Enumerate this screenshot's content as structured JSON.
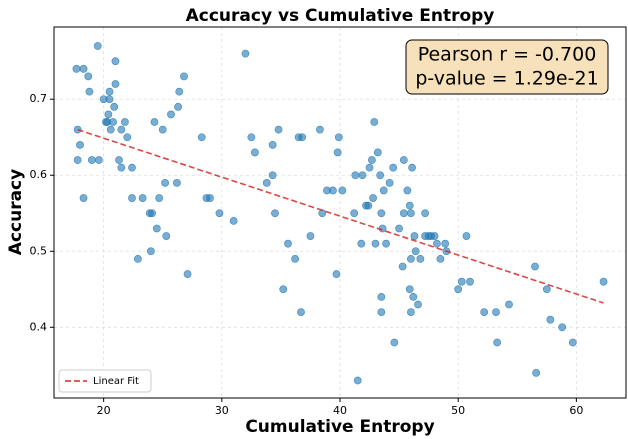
{
  "chart_data": {
    "type": "scatter",
    "title": "Accuracy vs Cumulative Entropy",
    "xlabel": "Cumulative Entropy",
    "ylabel": "Accuracy",
    "annotation": [
      "Pearson r = -0.700",
      "p-value = 1.29e-21"
    ],
    "xlim": [
      15.8,
      64.2
    ],
    "ylim": [
      0.307,
      0.795
    ],
    "xticks": [
      20,
      30,
      40,
      50,
      60
    ],
    "yticks": [
      0.4,
      0.5,
      0.6,
      0.7
    ],
    "grid": true,
    "legend": "lower left",
    "series": [
      {
        "name": "points",
        "color": "#1f77b4",
        "x": [
          17.7,
          18.3,
          19.5,
          18.7,
          18.8,
          17.8,
          18.0,
          17.8,
          18.3,
          19.0,
          19.6,
          20.0,
          20.2,
          20.3,
          20.5,
          20.5,
          20.4,
          20.6,
          20.9,
          21.0,
          21.0,
          20.8,
          21.3,
          21.5,
          21.5,
          21.8,
          22.0,
          22.4,
          22.4,
          22.9,
          23.3,
          23.9,
          24.0,
          24.1,
          24.3,
          24.7,
          24.5,
          25.0,
          25.2,
          25.3,
          25.7,
          26.3,
          26.2,
          26.4,
          26.8,
          27.1,
          28.3,
          28.7,
          29.0,
          29.8,
          31.0,
          32.0,
          32.5,
          32.8,
          33.8,
          34.3,
          34.5,
          34.8,
          34.3,
          35.2,
          35.6,
          36.2,
          36.5,
          36.8,
          36.7,
          37.5,
          38.3,
          38.5,
          38.9,
          39.4,
          39.7,
          39.8,
          39.9,
          40.2,
          41.2,
          41.3,
          41.5,
          41.8,
          41.9,
          42.2,
          42.4,
          42.5,
          42.7,
          42.8,
          42.9,
          43.0,
          43.2,
          43.4,
          43.5,
          43.6,
          43.7,
          43.5,
          43.5,
          43.9,
          44.2,
          44.5,
          44.6,
          45.0,
          45.3,
          45.4,
          45.4,
          45.7,
          45.9,
          46.0,
          46.1,
          45.9,
          46.0,
          46.2,
          46.3,
          46.4,
          46.6,
          46.8,
          47.2,
          47.2,
          47.5,
          47.7,
          48.0,
          48.2,
          48.5,
          48.9,
          49.0,
          50.0,
          50.3,
          50.7,
          51.0,
          52.2,
          53.2,
          53.3,
          54.3,
          56.5,
          56.6,
          57.5,
          57.8,
          58.8,
          59.7,
          62.3,
          46.0
        ],
        "values": [
          0.74,
          0.74,
          0.77,
          0.73,
          0.71,
          0.66,
          0.64,
          0.62,
          0.57,
          0.62,
          0.62,
          0.7,
          0.67,
          0.67,
          0.71,
          0.7,
          0.68,
          0.66,
          0.69,
          0.75,
          0.72,
          0.67,
          0.62,
          0.66,
          0.61,
          0.67,
          0.65,
          0.61,
          0.57,
          0.49,
          0.57,
          0.55,
          0.5,
          0.55,
          0.67,
          0.57,
          0.53,
          0.66,
          0.59,
          0.52,
          0.68,
          0.69,
          0.59,
          0.71,
          0.73,
          0.47,
          0.65,
          0.57,
          0.57,
          0.55,
          0.54,
          0.76,
          0.65,
          0.63,
          0.59,
          0.64,
          0.55,
          0.66,
          0.6,
          0.45,
          0.51,
          0.49,
          0.65,
          0.65,
          0.42,
          0.52,
          0.66,
          0.55,
          0.58,
          0.58,
          0.47,
          0.63,
          0.65,
          0.58,
          0.55,
          0.6,
          0.33,
          0.51,
          0.6,
          0.56,
          0.56,
          0.61,
          0.62,
          0.57,
          0.67,
          0.51,
          0.63,
          0.6,
          0.55,
          0.53,
          0.58,
          0.44,
          0.42,
          0.51,
          0.59,
          0.61,
          0.38,
          0.53,
          0.48,
          0.55,
          0.62,
          0.58,
          0.56,
          0.55,
          0.61,
          0.45,
          0.49,
          0.44,
          0.52,
          0.5,
          0.43,
          0.49,
          0.55,
          0.52,
          0.52,
          0.52,
          0.52,
          0.51,
          0.49,
          0.51,
          0.5,
          0.45,
          0.46,
          0.52,
          0.46,
          0.42,
          0.42,
          0.38,
          0.43,
          0.48,
          0.34,
          0.45,
          0.41,
          0.4,
          0.38,
          0.46,
          0.42
        ]
      },
      {
        "name": "Linear Fit",
        "color": "#d62728",
        "x": [
          17.8,
          62.3
        ],
        "values": [
          0.66,
          0.432
        ]
      }
    ]
  }
}
